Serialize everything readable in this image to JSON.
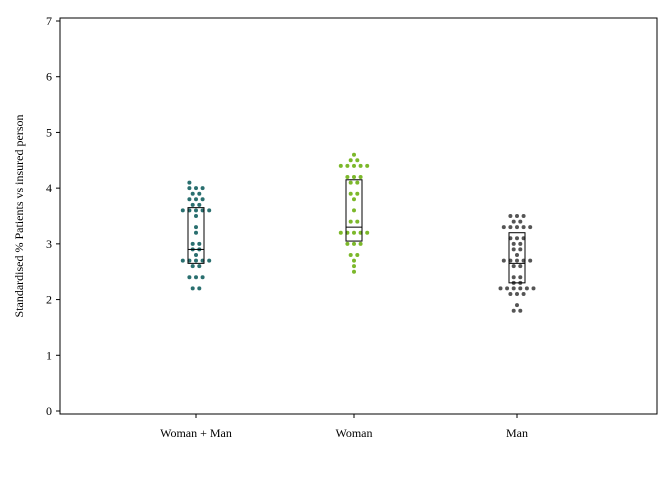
{
  "chart_data": {
    "type": "scatter",
    "title": "",
    "xlabel": "",
    "ylabel": "Standardised % Patients vs insured person",
    "ylim": [
      0,
      7
    ],
    "yticks": [
      0,
      1,
      2,
      3,
      4,
      5,
      6,
      7
    ],
    "grid": false,
    "categories": [
      "Woman + Man",
      "Woman",
      "Man"
    ],
    "series": [
      {
        "category": "Woman + Man",
        "color": "#2a6f6f",
        "box": {
          "q1": 2.65,
          "median": 2.9,
          "q3": 3.65
        },
        "points": [
          {
            "dx": -2,
            "y": 4.1
          },
          {
            "dx": -2,
            "y": 4.0
          },
          {
            "dx": 0,
            "y": 4.0
          },
          {
            "dx": 2,
            "y": 4.0
          },
          {
            "dx": -1,
            "y": 3.9
          },
          {
            "dx": 1,
            "y": 3.9
          },
          {
            "dx": -2,
            "y": 3.8
          },
          {
            "dx": 0,
            "y": 3.8
          },
          {
            "dx": 2,
            "y": 3.8
          },
          {
            "dx": -1,
            "y": 3.7
          },
          {
            "dx": 1,
            "y": 3.7
          },
          {
            "dx": -4,
            "y": 3.6
          },
          {
            "dx": -2,
            "y": 3.6
          },
          {
            "dx": 0,
            "y": 3.6
          },
          {
            "dx": 2,
            "y": 3.6
          },
          {
            "dx": 4,
            "y": 3.6
          },
          {
            "dx": 0,
            "y": 3.5
          },
          {
            "dx": 0,
            "y": 3.3
          },
          {
            "dx": 0,
            "y": 3.2
          },
          {
            "dx": -1,
            "y": 3.0
          },
          {
            "dx": 1,
            "y": 3.0
          },
          {
            "dx": -1,
            "y": 2.9
          },
          {
            "dx": 1,
            "y": 2.9
          },
          {
            "dx": 0,
            "y": 2.8
          },
          {
            "dx": -4,
            "y": 2.7
          },
          {
            "dx": -2,
            "y": 2.7
          },
          {
            "dx": 0,
            "y": 2.7
          },
          {
            "dx": 2,
            "y": 2.7
          },
          {
            "dx": 4,
            "y": 2.7
          },
          {
            "dx": -1,
            "y": 2.6
          },
          {
            "dx": 1,
            "y": 2.6
          },
          {
            "dx": -2,
            "y": 2.4
          },
          {
            "dx": 0,
            "y": 2.4
          },
          {
            "dx": 2,
            "y": 2.4
          },
          {
            "dx": -1,
            "y": 2.2
          },
          {
            "dx": 1,
            "y": 2.2
          }
        ]
      },
      {
        "category": "Woman",
        "color": "#7cb82a",
        "box": {
          "q1": 3.05,
          "median": 3.3,
          "q3": 4.15
        },
        "points": [
          {
            "dx": 0,
            "y": 4.6
          },
          {
            "dx": -1,
            "y": 4.5
          },
          {
            "dx": 1,
            "y": 4.5
          },
          {
            "dx": -4,
            "y": 4.4
          },
          {
            "dx": -2,
            "y": 4.4
          },
          {
            "dx": 0,
            "y": 4.4
          },
          {
            "dx": 2,
            "y": 4.4
          },
          {
            "dx": 4,
            "y": 4.4
          },
          {
            "dx": -2,
            "y": 4.2
          },
          {
            "dx": 0,
            "y": 4.2
          },
          {
            "dx": 2,
            "y": 4.2
          },
          {
            "dx": -1,
            "y": 4.1
          },
          {
            "dx": 1,
            "y": 4.1
          },
          {
            "dx": -1,
            "y": 3.9
          },
          {
            "dx": 1,
            "y": 3.9
          },
          {
            "dx": 0,
            "y": 3.8
          },
          {
            "dx": 0,
            "y": 3.6
          },
          {
            "dx": -1,
            "y": 3.4
          },
          {
            "dx": 1,
            "y": 3.4
          },
          {
            "dx": -4,
            "y": 3.2
          },
          {
            "dx": -2,
            "y": 3.2
          },
          {
            "dx": 0,
            "y": 3.2
          },
          {
            "dx": 2,
            "y": 3.2
          },
          {
            "dx": 4,
            "y": 3.2
          },
          {
            "dx": -2,
            "y": 3.0
          },
          {
            "dx": 0,
            "y": 3.0
          },
          {
            "dx": 2,
            "y": 3.0
          },
          {
            "dx": -1,
            "y": 2.8
          },
          {
            "dx": 1,
            "y": 2.8
          },
          {
            "dx": 0,
            "y": 2.7
          },
          {
            "dx": 0,
            "y": 2.6
          },
          {
            "dx": 0,
            "y": 2.5
          }
        ]
      },
      {
        "category": "Man",
        "color": "#555555",
        "box": {
          "q1": 2.3,
          "median": 2.65,
          "q3": 3.2
        },
        "points": [
          {
            "dx": -2,
            "y": 3.5
          },
          {
            "dx": 0,
            "y": 3.5
          },
          {
            "dx": 2,
            "y": 3.5
          },
          {
            "dx": -1,
            "y": 3.4
          },
          {
            "dx": 1,
            "y": 3.4
          },
          {
            "dx": -4,
            "y": 3.3
          },
          {
            "dx": -2,
            "y": 3.3
          },
          {
            "dx": 0,
            "y": 3.3
          },
          {
            "dx": 2,
            "y": 3.3
          },
          {
            "dx": 4,
            "y": 3.3
          },
          {
            "dx": -2,
            "y": 3.1
          },
          {
            "dx": 0,
            "y": 3.1
          },
          {
            "dx": 2,
            "y": 3.1
          },
          {
            "dx": -1,
            "y": 3.0
          },
          {
            "dx": 1,
            "y": 3.0
          },
          {
            "dx": -1,
            "y": 2.9
          },
          {
            "dx": 1,
            "y": 2.9
          },
          {
            "dx": 0,
            "y": 2.8
          },
          {
            "dx": -4,
            "y": 2.7
          },
          {
            "dx": -2,
            "y": 2.7
          },
          {
            "dx": 0,
            "y": 2.7
          },
          {
            "dx": 2,
            "y": 2.7
          },
          {
            "dx": 4,
            "y": 2.7
          },
          {
            "dx": -1,
            "y": 2.6
          },
          {
            "dx": 1,
            "y": 2.6
          },
          {
            "dx": -1,
            "y": 2.4
          },
          {
            "dx": 1,
            "y": 2.4
          },
          {
            "dx": -1,
            "y": 2.3
          },
          {
            "dx": 1,
            "y": 2.3
          },
          {
            "dx": -5,
            "y": 2.2
          },
          {
            "dx": -3,
            "y": 2.2
          },
          {
            "dx": -1,
            "y": 2.2
          },
          {
            "dx": 1,
            "y": 2.2
          },
          {
            "dx": 3,
            "y": 2.2
          },
          {
            "dx": 5,
            "y": 2.2
          },
          {
            "dx": -2,
            "y": 2.1
          },
          {
            "dx": 0,
            "y": 2.1
          },
          {
            "dx": 2,
            "y": 2.1
          },
          {
            "dx": 0,
            "y": 1.9
          },
          {
            "dx": -1,
            "y": 1.8
          },
          {
            "dx": 1,
            "y": 1.8
          }
        ]
      }
    ]
  }
}
